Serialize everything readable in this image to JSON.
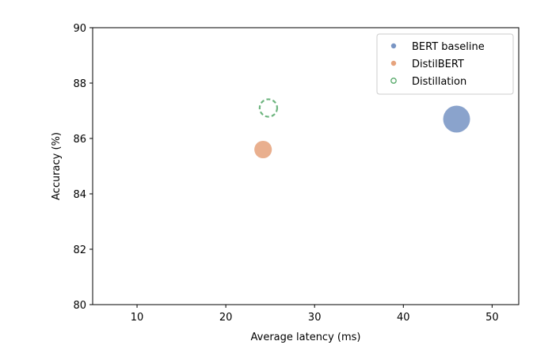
{
  "chart_data": {
    "type": "scatter",
    "title": "",
    "xlabel": "Average latency (ms)",
    "ylabel": "Accuracy (%)",
    "xlim": [
      5,
      53
    ],
    "ylim": [
      80,
      90
    ],
    "xticks": [
      10,
      20,
      30,
      40,
      50
    ],
    "yticks": [
      80,
      82,
      84,
      86,
      88,
      90
    ],
    "xtick_labels": [
      "10",
      "20",
      "30",
      "40",
      "50"
    ],
    "ytick_labels": [
      "80",
      "82",
      "84",
      "86",
      "88",
      "90"
    ],
    "grid": false,
    "legend": {
      "position": "top-right",
      "entries": [
        "BERT baseline",
        "DistilBERT",
        "Distillation"
      ]
    },
    "series": [
      {
        "name": "BERT baseline",
        "color": "#4c72b0",
        "style": "filled",
        "points": [
          {
            "x": 46.0,
            "y": 86.7,
            "relative_size": 1.0
          }
        ]
      },
      {
        "name": "DistilBERT",
        "color": "#dd8452",
        "style": "filled",
        "points": [
          {
            "x": 24.2,
            "y": 85.6,
            "relative_size": 0.65
          }
        ]
      },
      {
        "name": "Distillation",
        "color": "#55a868",
        "style": "dashed-outline",
        "points": [
          {
            "x": 24.8,
            "y": 87.1,
            "relative_size": 0.65
          }
        ]
      }
    ]
  }
}
